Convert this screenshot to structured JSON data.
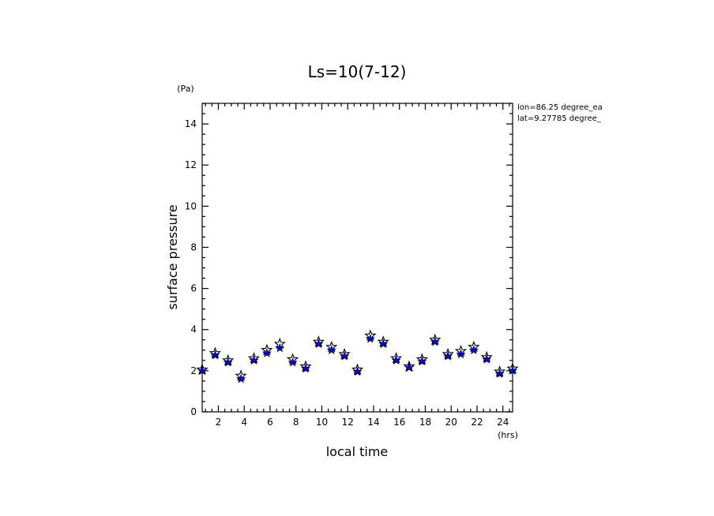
{
  "chart_data": {
    "type": "scatter",
    "title": "Ls=10(7-12)",
    "xlabel": "local time",
    "x_unit": "(hrs)",
    "ylabel": "surface pressure",
    "y_unit": "(Pa)",
    "xlim": [
      0.75,
      24.75
    ],
    "ylim": [
      0,
      15
    ],
    "x_ticks": [
      2,
      4,
      6,
      8,
      10,
      12,
      14,
      16,
      18,
      20,
      22,
      24
    ],
    "y_ticks": [
      0,
      2,
      4,
      6,
      8,
      10,
      12,
      14
    ],
    "annotations": [
      "lon=86.25 degree_ea",
      "lat=9.27785 degree_"
    ],
    "series": [
      {
        "marker": "star",
        "color": "#000000",
        "x": [
          0.75,
          1.75,
          2.75,
          3.75,
          4.75,
          5.75,
          6.75,
          7.75,
          8.75,
          9.75,
          10.75,
          11.75,
          12.75,
          13.75,
          14.75,
          15.75,
          16.75,
          17.75,
          18.75,
          19.75,
          20.75,
          21.75,
          22.75,
          23.75,
          24.75
        ],
        "values": [
          2.05,
          2.85,
          2.5,
          1.75,
          2.6,
          3.0,
          3.3,
          2.55,
          2.2,
          3.4,
          3.15,
          2.8,
          2.05,
          3.7,
          3.4,
          2.6,
          2.2,
          2.55,
          3.5,
          2.8,
          2.95,
          3.15,
          2.65,
          1.95,
          2.1
        ]
      },
      {
        "marker": "star",
        "color": "#0000ff",
        "x": [
          0.75,
          1.75,
          2.75,
          3.75,
          4.75,
          5.75,
          6.75,
          7.75,
          8.75,
          9.75,
          10.75,
          11.75,
          12.75,
          13.75,
          14.75,
          15.75,
          16.75,
          17.75,
          18.75,
          19.75,
          20.75,
          21.75,
          22.75,
          23.75,
          24.75
        ],
        "values": [
          2.0,
          2.75,
          2.4,
          1.6,
          2.5,
          2.85,
          3.1,
          2.4,
          2.1,
          3.3,
          3.0,
          2.7,
          1.95,
          3.55,
          3.3,
          2.5,
          2.15,
          2.45,
          3.4,
          2.7,
          2.8,
          3.0,
          2.55,
          1.85,
          2.0
        ]
      }
    ]
  }
}
